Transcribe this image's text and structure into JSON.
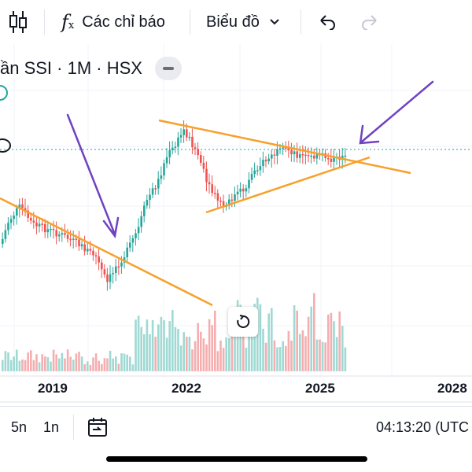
{
  "toolbar": {
    "indicators_label": "Các chỉ báo",
    "chart_type_label": "Biểu đồ",
    "icons": [
      "candles-icon",
      "function-icon",
      "chevron-down-icon",
      "undo-icon",
      "redo-icon"
    ]
  },
  "symbol": {
    "title": "ần SSI · 1M · HSX"
  },
  "xaxis": {
    "years": [
      "2019",
      "2022",
      "2025",
      "2028"
    ]
  },
  "bottom": {
    "range_5y": "5n",
    "range_1y": "1n",
    "time": "04:13:20 (UTC"
  },
  "colors": {
    "up": "#26a69a",
    "down": "#ef5350",
    "trendline": "#f7a02b",
    "arrow": "#6f42c1",
    "price_line": "#26a69a"
  }
}
